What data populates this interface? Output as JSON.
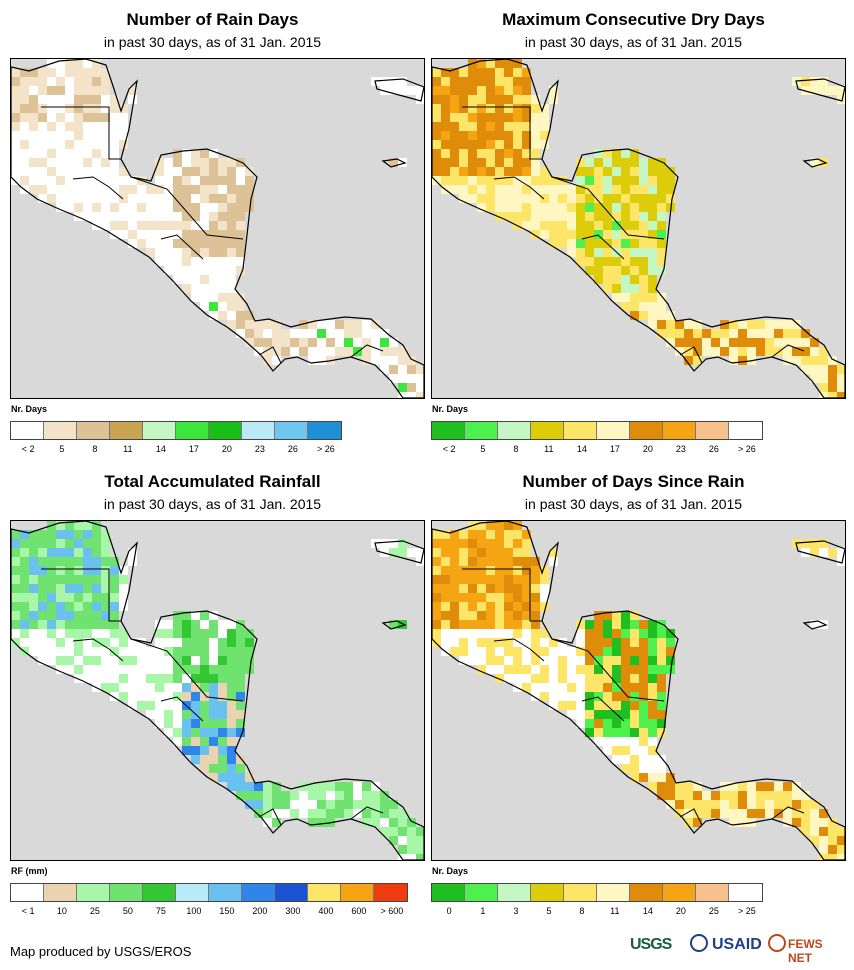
{
  "panels": [
    {
      "id": "rain-days",
      "title": "Number of Rain Days",
      "subtitle": "in past 30 days, as of 31 Jan. 2015",
      "legend_title": "Nr. Days",
      "legend_colors": [
        "#ffffff",
        "#f3e3c8",
        "#dcc296",
        "#c9a453",
        "#c4f7c4",
        "#3de63d",
        "#19bf19",
        "#bce9f7",
        "#6fc6ee",
        "#1f90d6"
      ],
      "legend_ticks": [
        "< 2",
        "5",
        "8",
        "11",
        "14",
        "17",
        "20",
        "23",
        "26",
        "> 26"
      ],
      "pattern": "rain"
    },
    {
      "id": "dry-days",
      "title": "Maximum Consecutive Dry Days",
      "subtitle": "in past 30 days, as of 31 Jan. 2015",
      "legend_title": "Nr. Days",
      "legend_colors": [
        "#1fbf1f",
        "#4ef04e",
        "#c4f7c4",
        "#ddcc0a",
        "#fde667",
        "#fff7c2",
        "#de8c09",
        "#f5a413",
        "#f8c08d",
        "#ffffff"
      ],
      "legend_ticks": [
        "< 2",
        "5",
        "8",
        "11",
        "14",
        "17",
        "20",
        "23",
        "26",
        "> 26"
      ],
      "pattern": "dry"
    },
    {
      "id": "rainfall",
      "title": "Total Accumulated Rainfall",
      "subtitle": "in past 30 days, as of 31 Jan. 2015",
      "legend_title": "RF (mm)",
      "legend_colors": [
        "#ffffff",
        "#ead3b1",
        "#a8f7a8",
        "#6fe26f",
        "#34c734",
        "#b8eaf8",
        "#6ac0ef",
        "#2f86e8",
        "#1c52d4",
        "#fde667",
        "#f5a413",
        "#f03b0f"
      ],
      "legend_ticks": [
        "< 1",
        "10",
        "25",
        "50",
        "75",
        "100",
        "150",
        "200",
        "300",
        "400",
        "600",
        "> 600"
      ],
      "pattern": "rainfall"
    },
    {
      "id": "days-since-rain",
      "title": "Number of Days Since Rain",
      "subtitle": "in past 30 days, as of 31 Jan. 2015",
      "legend_title": "Nr. Days",
      "legend_colors": [
        "#1fbf1f",
        "#4ef04e",
        "#c4f7c4",
        "#ddcc0a",
        "#fde667",
        "#fff7c2",
        "#de8c09",
        "#f5a413",
        "#f8c08d",
        "#ffffff"
      ],
      "legend_ticks": [
        "0",
        "1",
        "3",
        "5",
        "8",
        "11",
        "14",
        "20",
        "25",
        "> 25"
      ],
      "pattern": "since"
    }
  ],
  "footer": "Map produced by USGS/EROS",
  "logos": {
    "usgs": "USGS",
    "usaid": "USAID",
    "fewsnet": "FEWS NET"
  },
  "colors": {
    "ocean": "#d9d9d9",
    "land_outline": "#000000"
  }
}
